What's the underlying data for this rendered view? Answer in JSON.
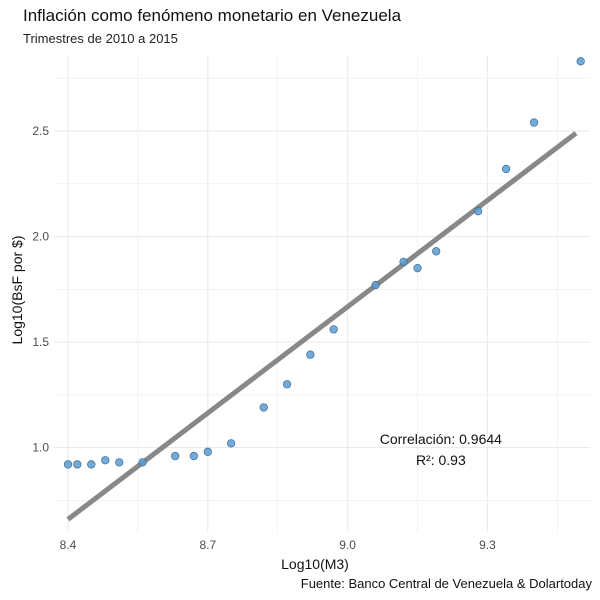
{
  "chart_data": {
    "type": "scatter",
    "title": "Inflación como fenómeno monetario en Venezuela",
    "subtitle": "Trimestres de 2010 a 2015",
    "caption": "Fuente: Banco Central de Venezuela & Dolartoday",
    "xlabel": "Log10(M3)",
    "ylabel": "Log10(BsF por $)",
    "xlim": [
      8.37,
      9.52
    ],
    "ylim": [
      0.6,
      2.86
    ],
    "x_ticks": [
      8.4,
      8.7,
      9.0,
      9.3
    ],
    "x_tick_labels": [
      "8.4",
      "8.7",
      "9.0",
      "9.3"
    ],
    "y_ticks": [
      1.0,
      1.5,
      2.0,
      2.5
    ],
    "y_tick_labels": [
      "1.0",
      "1.5",
      "2.0",
      "2.5"
    ],
    "grid": true,
    "colors": {
      "points": "#5b9bd0",
      "points_stroke": "#3c6f99",
      "fit_line": "#888888",
      "grid": "#ebebeb"
    },
    "points": [
      {
        "x": 8.4,
        "y": 0.92
      },
      {
        "x": 8.42,
        "y": 0.92
      },
      {
        "x": 8.45,
        "y": 0.92
      },
      {
        "x": 8.48,
        "y": 0.94
      },
      {
        "x": 8.51,
        "y": 0.93
      },
      {
        "x": 8.56,
        "y": 0.93
      },
      {
        "x": 8.63,
        "y": 0.96
      },
      {
        "x": 8.67,
        "y": 0.96
      },
      {
        "x": 8.7,
        "y": 0.98
      },
      {
        "x": 8.75,
        "y": 1.02
      },
      {
        "x": 8.82,
        "y": 1.19
      },
      {
        "x": 8.87,
        "y": 1.3
      },
      {
        "x": 8.92,
        "y": 1.44
      },
      {
        "x": 8.97,
        "y": 1.56
      },
      {
        "x": 9.06,
        "y": 1.77
      },
      {
        "x": 9.12,
        "y": 1.88
      },
      {
        "x": 9.15,
        "y": 1.85
      },
      {
        "x": 9.19,
        "y": 1.93
      },
      {
        "x": 9.28,
        "y": 2.12
      },
      {
        "x": 9.34,
        "y": 2.32
      },
      {
        "x": 9.4,
        "y": 2.54
      },
      {
        "x": 9.5,
        "y": 2.83
      }
    ],
    "fit_line": {
      "x": [
        8.4,
        9.49
      ],
      "y": [
        0.66,
        2.49
      ]
    },
    "annotations": [
      {
        "label": "Correlación:",
        "value": "0.9644",
        "x": 9.2,
        "y": 1.04
      },
      {
        "label": "R²:",
        "value": "0.93",
        "x": 9.2,
        "y": 0.94
      }
    ]
  }
}
